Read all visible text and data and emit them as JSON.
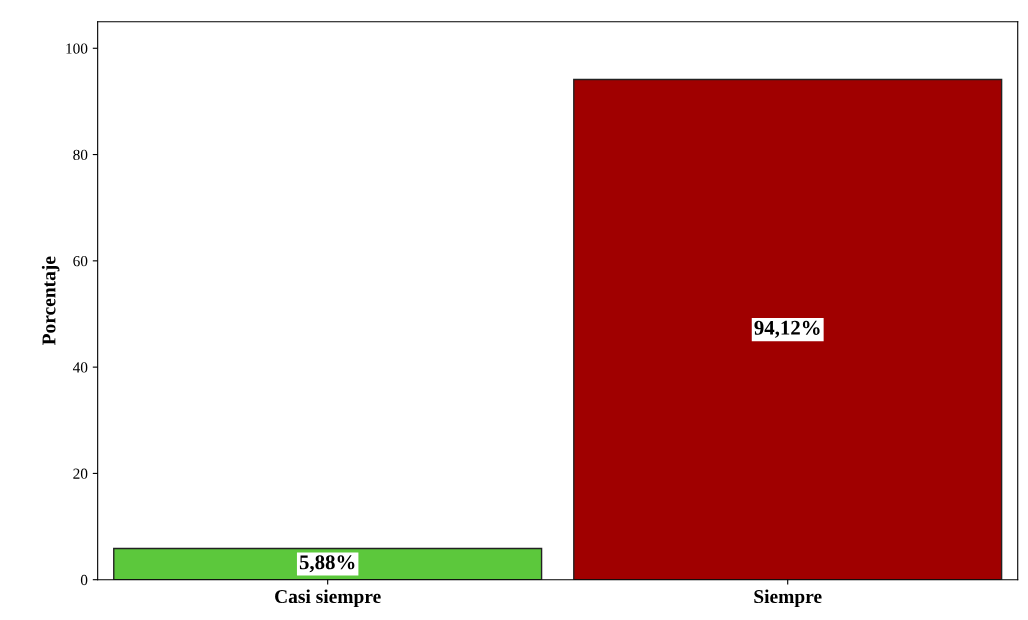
{
  "chart_data": {
    "type": "bar",
    "ylabel": "Porcentaje",
    "categories": [
      "Casi siempre",
      "Siempre"
    ],
    "values": [
      5.88,
      94.12
    ],
    "colors": [
      "#5cc83c",
      "#a00000"
    ],
    "value_labels": [
      "5,88%",
      "94,12%"
    ],
    "ylim": [
      0,
      105
    ],
    "yticks": [
      0,
      20,
      40,
      60,
      80,
      100
    ],
    "grid": false,
    "legend": false
  }
}
